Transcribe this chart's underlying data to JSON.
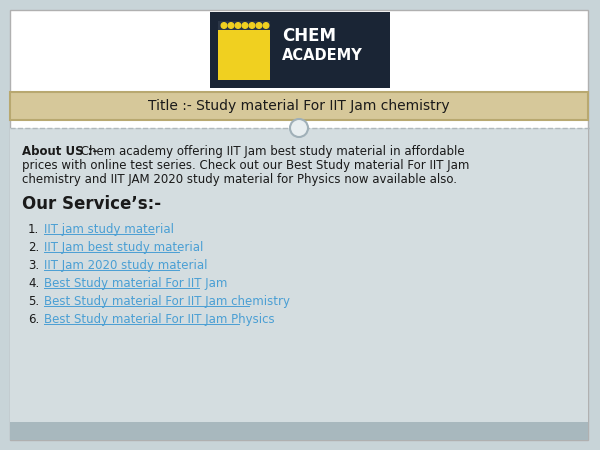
{
  "bg_color": "#c8d4d8",
  "footer_color": "#a8b8be",
  "title_bar_color": "#d6c89a",
  "title_bar_border": "#b8a870",
  "title_text": "Title :- Study material For IIT Jam chemistry",
  "logo_bg": "#1a2535",
  "logo_yellow": "#f0d020",
  "about_bold": "About US :-",
  "about_line1_rest": " Chem academy offering IIT Jam best study material in affordable",
  "about_line2": "prices with online test series. Check out our Best Study material For IIT Jam",
  "about_line3": "chemistry and IIT JAM 2020 study material for Physics now available also.",
  "services_title": "Our Service’s:-",
  "services": [
    "IIT jam study material",
    "IIT Jam best study material",
    "IIT Jam 2020 study material",
    "Best Study material For IIT Jam",
    "Best Study material For IIT Jam chemistry",
    "Best Study material For IIT Jam Physics"
  ],
  "link_color": "#4a9fd4",
  "text_color": "#1a1a1a",
  "border_color": "#b0b0b0",
  "separator_color": "#b0b8bc",
  "circle_fill": "#e8eef0",
  "circle_border": "#a0b0b8",
  "content_bg": "#d4dde0"
}
